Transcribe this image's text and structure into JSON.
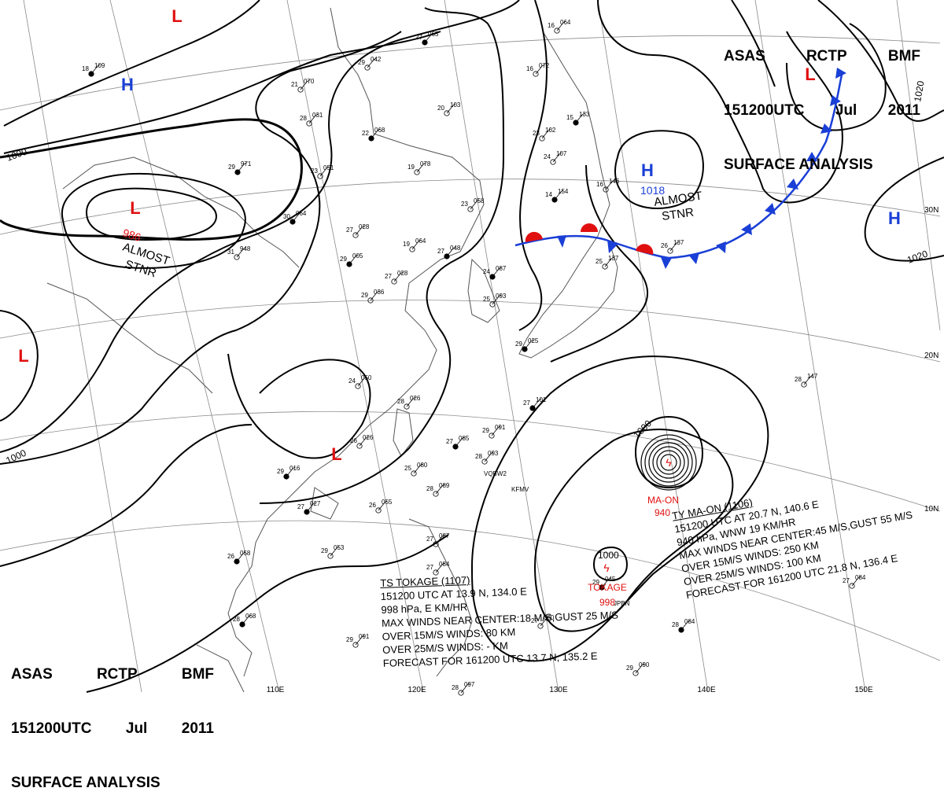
{
  "header": {
    "center_line": [
      "ASAS",
      "RCTP",
      "BMF"
    ],
    "time_line": [
      "151200UTC",
      "Jul",
      "2011"
    ],
    "type_line": "SURFACE ANALYSIS"
  },
  "lon_labels": [
    "110E",
    "120E",
    "130E",
    "140E",
    "150E"
  ],
  "lat_labels": [
    "30N",
    "20N",
    "10N"
  ],
  "pressure_centers": [
    {
      "type": "H",
      "color": "#1a3fd6",
      "pressure": ""
    },
    {
      "type": "H",
      "color": "#1a3fd6",
      "pressure": "1018"
    },
    {
      "type": "H",
      "color": "#1a3fd6",
      "pressure": ""
    },
    {
      "type": "L",
      "color": "#e01010",
      "pressure": ""
    },
    {
      "type": "L",
      "color": "#e01010",
      "pressure": "986"
    },
    {
      "type": "L",
      "color": "#e01010",
      "pressure": ""
    },
    {
      "type": "L",
      "color": "#e01010",
      "pressure": ""
    },
    {
      "type": "L",
      "color": "#e01010",
      "pressure": ""
    }
  ],
  "almost_stnr_labels": [
    "ALMOST",
    "STNR",
    "ALMOST",
    "STNR"
  ],
  "isobar_labels": [
    "1000",
    "1000",
    "1000",
    "1020",
    "1020",
    "1000"
  ],
  "storms": [
    {
      "name": "MA-ON",
      "pressure": "940",
      "color": "#e01010"
    },
    {
      "name": "TOKAGE",
      "pressure": "998",
      "color": "#e01010"
    }
  ],
  "ts_info": [
    "TS  TOKAGE  (1107)",
    "151200 UTC  AT 13.9 N, 134.0 E",
    "998 hPa, E  KM/HR",
    "MAX WINDS NEAR CENTER:18 M/S,GUST 25 M/S",
    "OVER 15M/S WINDS: 80 KM",
    "OVER 25M/S WINDS: - KM",
    "FORECAST FOR 161200 UTC 13.7 N, 135.2 E"
  ],
  "ty_info": [
    "TY  MA-ON  (1106)",
    "151200 UTC   AT 20.7 N, 140.6 E",
    "940 hPa, WNW  19 KM/HR",
    "MAX WINDS NEAR CENTER:45 M/S,GUST 55 M/S",
    "OVER 15M/S WINDS: 250 KM",
    "OVER 25M/S WINDS: 100 KM",
    "FORECAST FOR 161200 UTC 21.8 N, 136.4 E"
  ],
  "stations": [
    {
      "p": "065",
      "t": "27"
    },
    {
      "p": "064",
      "t": "16"
    },
    {
      "p": "042",
      "t": "29"
    },
    {
      "p": "109",
      "t": "18"
    },
    {
      "p": "070",
      "t": "21"
    },
    {
      "p": "031",
      "t": "28"
    },
    {
      "p": "068",
      "t": "22"
    },
    {
      "p": "103",
      "t": "20"
    },
    {
      "p": "072",
      "t": "16"
    },
    {
      "p": "133",
      "t": "15"
    },
    {
      "p": "102",
      "t": "23"
    },
    {
      "p": "107",
      "t": "24"
    },
    {
      "p": "971",
      "t": "29"
    },
    {
      "p": "051",
      "t": "23"
    },
    {
      "p": "078",
      "t": "19"
    },
    {
      "p": "154",
      "t": "14"
    },
    {
      "p": "146",
      "t": "16"
    },
    {
      "p": "058",
      "t": "23"
    },
    {
      "p": "064",
      "t": "30"
    },
    {
      "p": "028",
      "t": "27"
    },
    {
      "p": "064",
      "t": "19"
    },
    {
      "p": "048",
      "t": "27"
    },
    {
      "p": "137",
      "t": "26"
    },
    {
      "p": "948",
      "t": "31"
    },
    {
      "p": "005",
      "t": "29"
    },
    {
      "p": "036",
      "t": "29"
    },
    {
      "p": "028",
      "t": "27"
    },
    {
      "p": "087",
      "t": "24"
    },
    {
      "p": "093",
      "t": "25"
    },
    {
      "p": "137",
      "t": "25"
    },
    {
      "p": "025",
      "t": "29"
    },
    {
      "p": "050",
      "t": "24"
    },
    {
      "p": "026",
      "t": "28"
    },
    {
      "p": "101",
      "t": "27"
    },
    {
      "p": "147",
      "t": "28"
    },
    {
      "p": "026",
      "t": "26"
    },
    {
      "p": "085",
      "t": "27"
    },
    {
      "p": "091",
      "t": "29"
    },
    {
      "p": "093",
      "t": "28"
    },
    {
      "p": "016",
      "t": "29"
    },
    {
      "p": "080",
      "t": "25"
    },
    {
      "p": "089",
      "t": "28"
    },
    {
      "p": "027",
      "t": "27"
    },
    {
      "p": "055",
      "t": "26"
    },
    {
      "p": "053",
      "t": "29"
    },
    {
      "p": "058",
      "t": "26"
    },
    {
      "p": "087",
      "t": "27"
    },
    {
      "p": "084",
      "t": "27"
    },
    {
      "p": "068",
      "t": "28"
    },
    {
      "p": "091",
      "t": "29"
    },
    {
      "p": "080",
      "t": "27"
    },
    {
      "p": "084",
      "t": "28"
    },
    {
      "p": "090",
      "t": "29"
    },
    {
      "p": "097",
      "t": "28"
    },
    {
      "p": "045",
      "t": "29"
    },
    {
      "p": "084",
      "t": "27"
    }
  ],
  "station_codes": [
    "KFMV",
    "VQBW2",
    "JPBN"
  ]
}
